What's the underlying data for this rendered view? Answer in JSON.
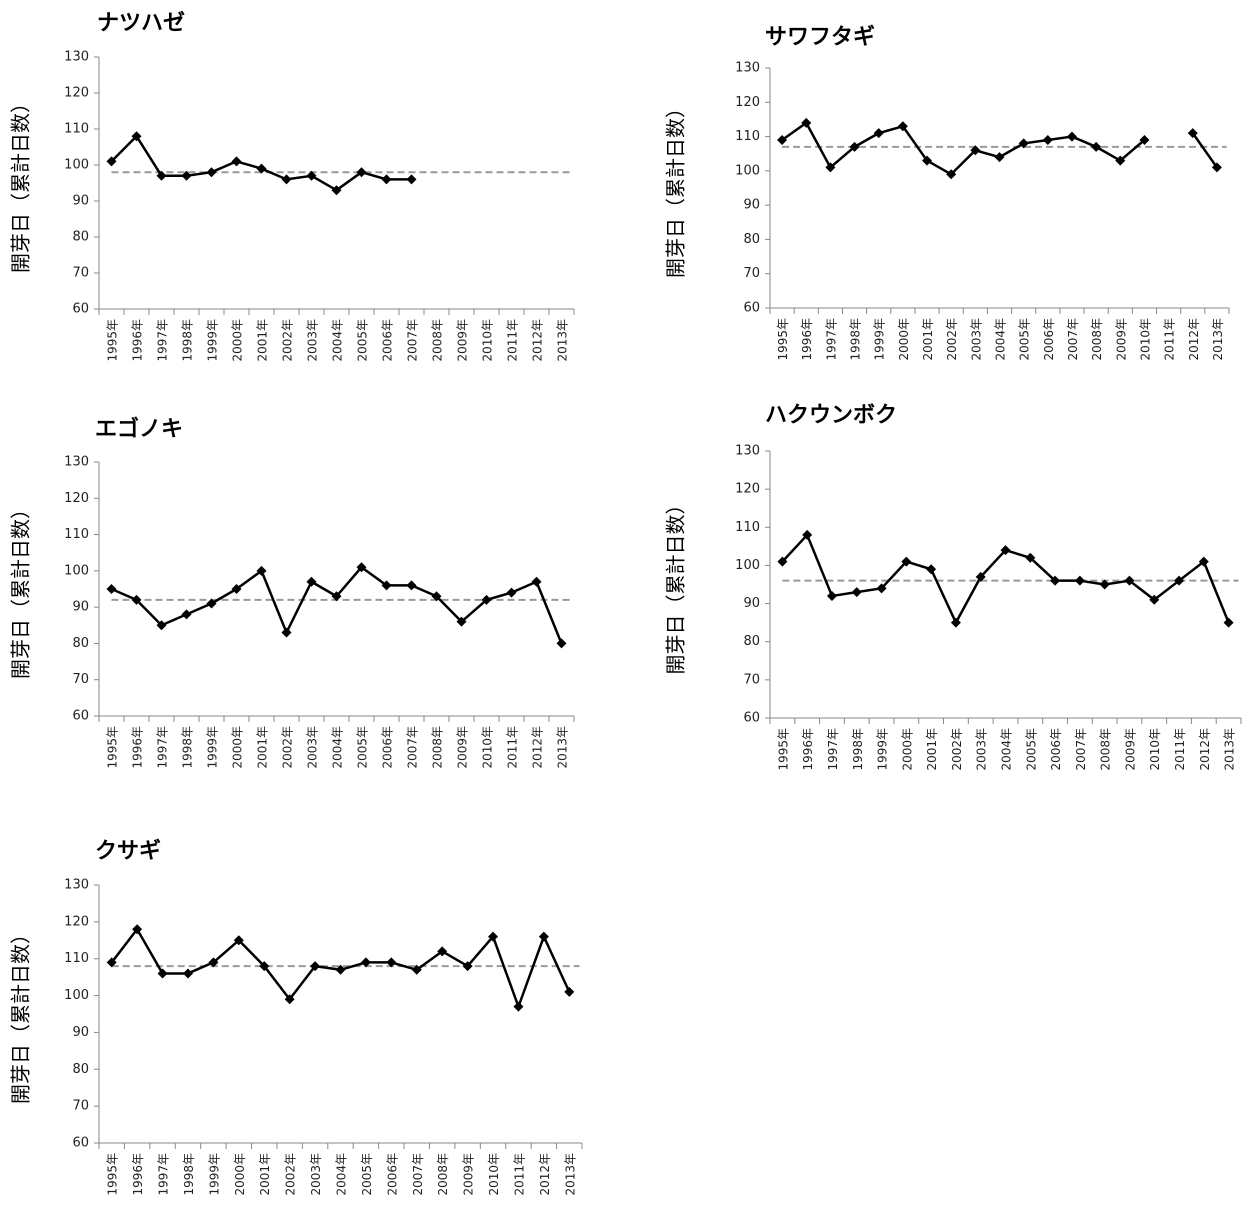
{
  "years": [
    "1995年",
    "1996年",
    "1997年",
    "1998年",
    "1999年",
    "2000年",
    "2001年",
    "2002年",
    "2003年",
    "2004年",
    "2005年",
    "2006年",
    "2007年",
    "2008年",
    "2009年",
    "2010年",
    "2011年",
    "2012年",
    "2013年"
  ],
  "chart_data": [
    {
      "type": "line",
      "title": "ナツハゼ",
      "ylabel": "開芽日（累計日数）",
      "categories": [
        "1995年",
        "1996年",
        "1997年",
        "1998年",
        "1999年",
        "2000年",
        "2001年",
        "2002年",
        "2003年",
        "2004年",
        "2005年",
        "2006年",
        "2007年",
        "2008年",
        "2009年",
        "2010年",
        "2011年",
        "2012年",
        "2013年"
      ],
      "values": [
        101,
        108,
        97,
        97,
        98,
        101,
        99,
        96,
        97,
        93,
        98,
        96,
        96,
        null,
        null,
        null,
        null,
        null,
        null
      ],
      "mean": 98,
      "ylim": [
        60,
        130
      ],
      "yticks": [
        60,
        70,
        80,
        90,
        100,
        110,
        120,
        130
      ]
    },
    {
      "type": "line",
      "title": "サワフタギ",
      "ylabel": "開芽日（累計日数）",
      "categories": [
        "1995年",
        "1996年",
        "1997年",
        "1998年",
        "1999年",
        "2000年",
        "2001年",
        "2002年",
        "2003年",
        "2004年",
        "2005年",
        "2006年",
        "2007年",
        "2008年",
        "2009年",
        "2010年",
        "2011年",
        "2012年",
        "2013年"
      ],
      "values": [
        109,
        114,
        101,
        107,
        111,
        113,
        103,
        99,
        106,
        104,
        108,
        109,
        110,
        107,
        103,
        109,
        null,
        111,
        101
      ],
      "mean": 107,
      "ylim": [
        60,
        130
      ],
      "yticks": [
        60,
        70,
        80,
        90,
        100,
        110,
        120,
        130
      ]
    },
    {
      "type": "line",
      "title": "エゴノキ",
      "ylabel": "開芽日（累計日数）",
      "categories": [
        "1995年",
        "1996年",
        "1997年",
        "1998年",
        "1999年",
        "2000年",
        "2001年",
        "2002年",
        "2003年",
        "2004年",
        "2005年",
        "2006年",
        "2007年",
        "2008年",
        "2009年",
        "2010年",
        "2011年",
        "2012年",
        "2013年"
      ],
      "values": [
        95,
        92,
        85,
        88,
        91,
        95,
        100,
        83,
        97,
        93,
        101,
        96,
        96,
        93,
        86,
        92,
        94,
        97,
        80
      ],
      "mean": 92,
      "ylim": [
        60,
        130
      ],
      "yticks": [
        60,
        70,
        80,
        90,
        100,
        110,
        120,
        130
      ]
    },
    {
      "type": "line",
      "title": "ハクウンボク",
      "ylabel": "開芽日（累計日数）",
      "categories": [
        "1995年",
        "1996年",
        "1997年",
        "1998年",
        "1999年",
        "2000年",
        "2001年",
        "2002年",
        "2003年",
        "2004年",
        "2005年",
        "2006年",
        "2007年",
        "2008年",
        "2009年",
        "2010年",
        "2011年",
        "2012年",
        "2013年"
      ],
      "values": [
        101,
        108,
        92,
        93,
        94,
        101,
        99,
        85,
        97,
        104,
        102,
        96,
        96,
        95,
        96,
        91,
        96,
        101,
        85
      ],
      "mean": 96,
      "ylim": [
        60,
        130
      ],
      "yticks": [
        60,
        70,
        80,
        90,
        100,
        110,
        120,
        130
      ]
    },
    {
      "type": "line",
      "title": "クサギ",
      "ylabel": "開芽日（累計日数）",
      "categories": [
        "1995年",
        "1996年",
        "1997年",
        "1998年",
        "1999年",
        "2000年",
        "2001年",
        "2002年",
        "2003年",
        "2004年",
        "2005年",
        "2006年",
        "2007年",
        "2008年",
        "2009年",
        "2010年",
        "2011年",
        "2012年",
        "2013年"
      ],
      "values": [
        109,
        118,
        106,
        106,
        109,
        115,
        108,
        99,
        108,
        107,
        109,
        109,
        107,
        112,
        108,
        116,
        97,
        116,
        101
      ],
      "mean": 108,
      "ylim": [
        60,
        130
      ],
      "yticks": [
        60,
        70,
        80,
        90,
        100,
        110,
        120,
        130
      ]
    }
  ],
  "colors": {
    "series": "#000000",
    "mean_line": "#999999",
    "axis": "#888888"
  }
}
